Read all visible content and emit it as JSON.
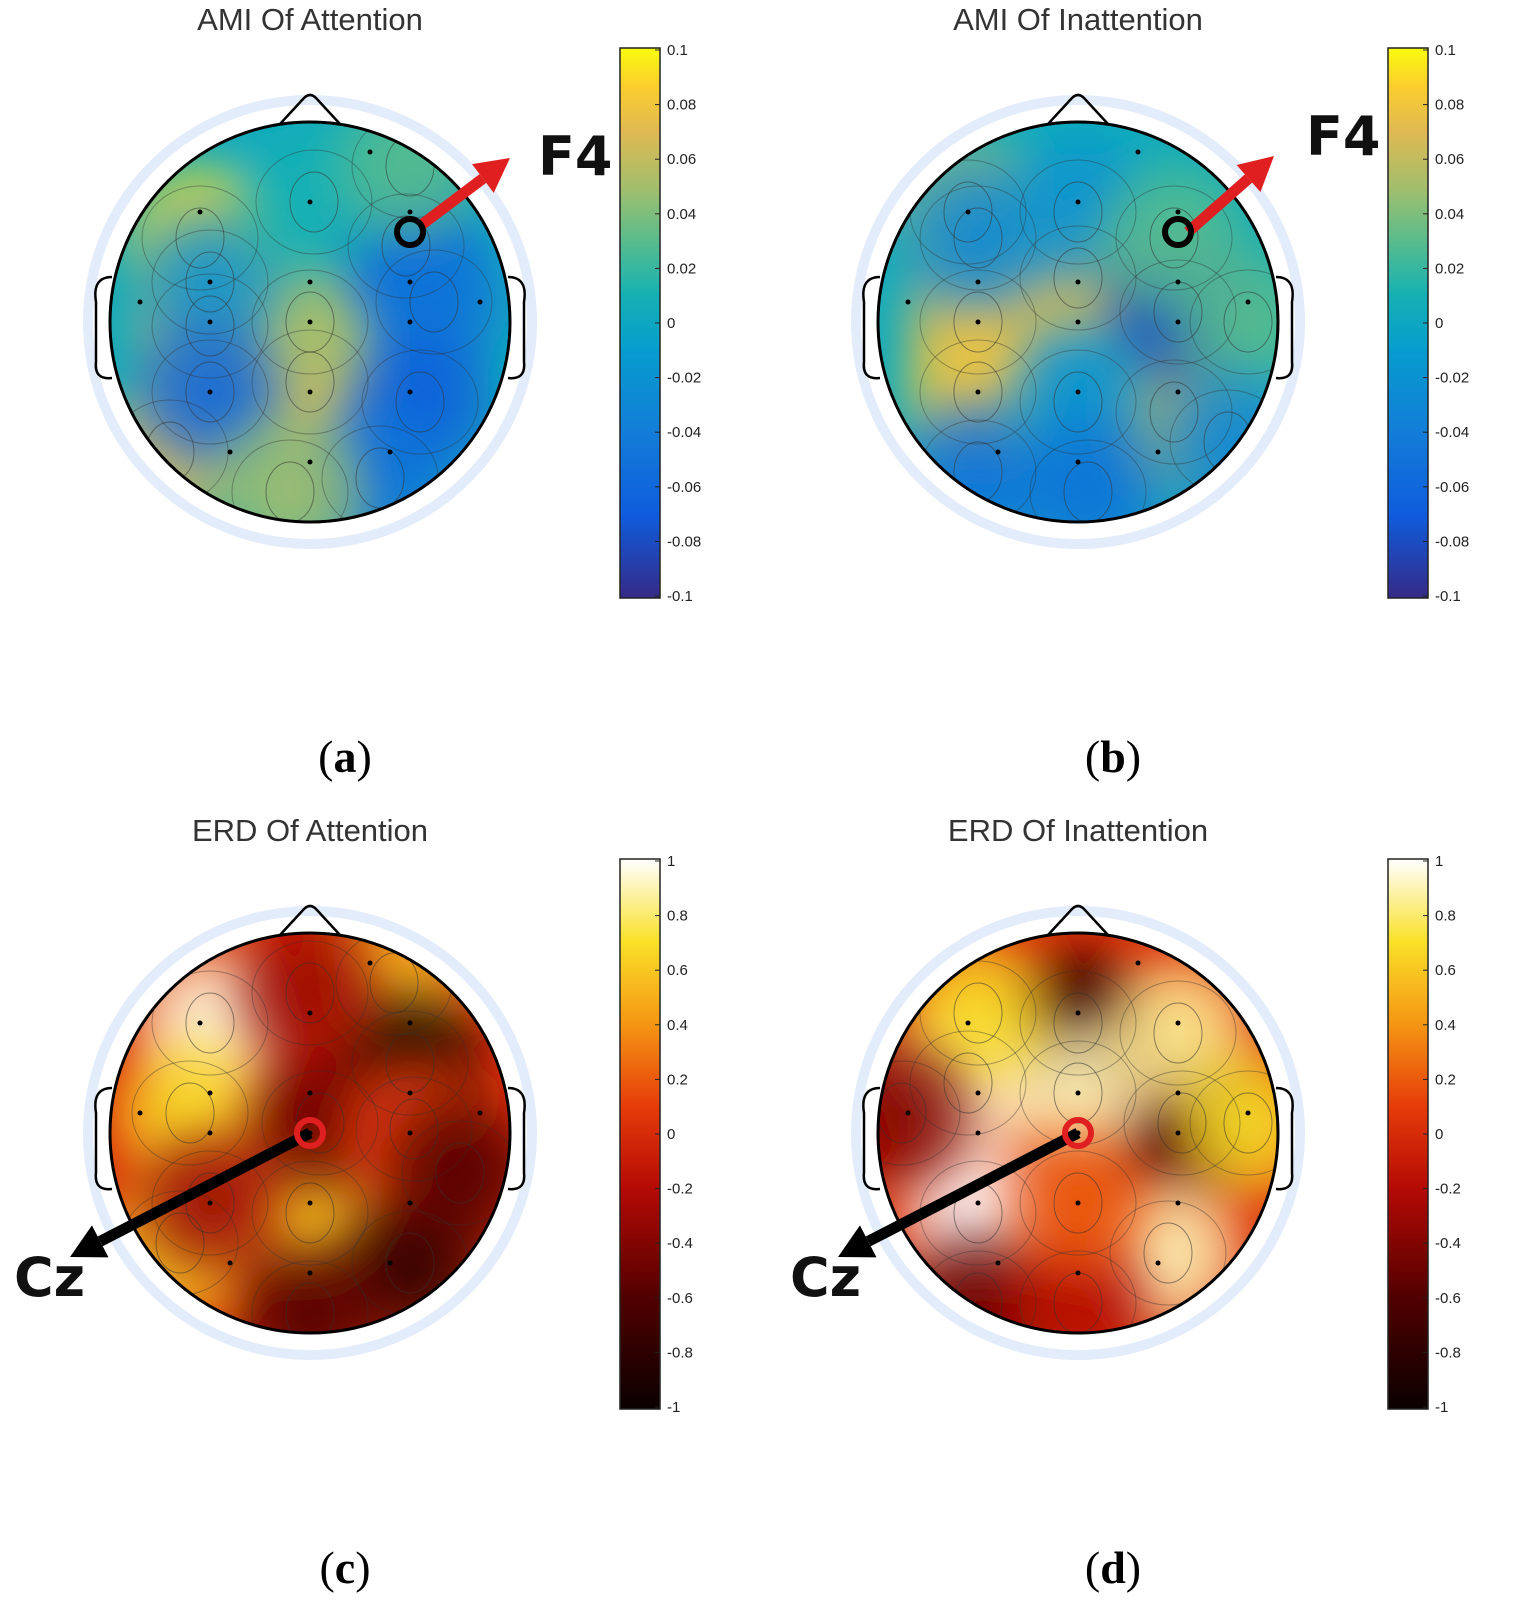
{
  "panels": [
    {
      "id": "a",
      "title": "AMI Of Attention",
      "label_letter": "a",
      "annotation": "F4",
      "annotation_color": "#e02020",
      "colormap": "parula",
      "colorbar_ticks": [
        "0.1",
        "0.08",
        "0.06",
        "0.04",
        "0.02",
        "0",
        "-0.02",
        "-0.04",
        "-0.06",
        "-0.08",
        "-0.1"
      ]
    },
    {
      "id": "b",
      "title": "AMI Of Inattention",
      "label_letter": "b",
      "annotation": "F4",
      "annotation_color": "#e02020",
      "colormap": "parula",
      "colorbar_ticks": [
        "0.1",
        "0.08",
        "0.06",
        "0.04",
        "0.02",
        "0",
        "-0.02",
        "-0.04",
        "-0.06",
        "-0.08",
        "-0.1"
      ]
    },
    {
      "id": "c",
      "title": "ERD Of Attention",
      "label_letter": "c",
      "annotation": "Cz",
      "annotation_color": "#000000",
      "colormap": "hot",
      "colorbar_ticks": [
        "1",
        "0.8",
        "0.6",
        "0.4",
        "0.2",
        "0",
        "-0.2",
        "-0.4",
        "-0.6",
        "-0.8",
        "-1"
      ]
    },
    {
      "id": "d",
      "title": "ERD Of Inattention",
      "label_letter": "d",
      "annotation": "Cz",
      "annotation_color": "#000000",
      "colormap": "hot",
      "colorbar_ticks": [
        "1",
        "0.8",
        "0.6",
        "0.4",
        "0.2",
        "0",
        "-0.2",
        "-0.4",
        "-0.6",
        "-0.8",
        "-1"
      ]
    }
  ],
  "chart_data": [
    {
      "type": "heatmap",
      "title": "AMI Of Attention",
      "colorbar_range": [
        -0.1,
        0.1
      ],
      "highlighted_channel": "F4",
      "blobs": [
        {
          "x": -0.55,
          "y": 0.42,
          "v": 0.09
        },
        {
          "x": -0.5,
          "y": -0.02,
          "v": 0.07
        },
        {
          "x": 0.0,
          "y": -0.3,
          "v": 0.07
        },
        {
          "x": -0.7,
          "y": -0.65,
          "v": 0.07
        },
        {
          "x": 0.0,
          "y": 0.0,
          "v": 0.05
        },
        {
          "x": -0.5,
          "y": 0.2,
          "v": -0.02
        },
        {
          "x": -0.5,
          "y": -0.35,
          "v": -0.06
        },
        {
          "x": 0.48,
          "y": 0.38,
          "v": -0.06
        },
        {
          "x": 0.62,
          "y": 0.1,
          "v": -0.05
        },
        {
          "x": 0.55,
          "y": -0.4,
          "v": -0.07
        },
        {
          "x": 0.35,
          "y": -0.78,
          "v": -0.05
        },
        {
          "x": 0.02,
          "y": 0.6,
          "v": 0.01
        },
        {
          "x": 0.5,
          "y": 0.78,
          "v": 0.03
        },
        {
          "x": -0.1,
          "y": -0.85,
          "v": 0.05
        }
      ]
    },
    {
      "type": "heatmap",
      "title": "AMI Of Inattention",
      "colorbar_range": [
        -0.1,
        0.1
      ],
      "highlighted_channel": "F4",
      "blobs": [
        {
          "x": -0.5,
          "y": 0.0,
          "v": 0.07
        },
        {
          "x": -0.5,
          "y": -0.35,
          "v": 0.08
        },
        {
          "x": 0.0,
          "y": 0.22,
          "v": 0.07
        },
        {
          "x": 0.48,
          "y": -0.45,
          "v": 0.07
        },
        {
          "x": -0.55,
          "y": 0.55,
          "v": 0.05
        },
        {
          "x": -0.5,
          "y": 0.42,
          "v": -0.03
        },
        {
          "x": 0.0,
          "y": 0.55,
          "v": -0.02
        },
        {
          "x": 0.5,
          "y": 0.05,
          "v": -0.08
        },
        {
          "x": 0.48,
          "y": 0.42,
          "v": 0.03
        },
        {
          "x": -0.5,
          "y": -0.75,
          "v": -0.05
        },
        {
          "x": 0.0,
          "y": -0.4,
          "v": -0.02
        },
        {
          "x": 0.05,
          "y": -0.85,
          "v": -0.05
        },
        {
          "x": 0.85,
          "y": 0.0,
          "v": 0.03
        },
        {
          "x": 0.75,
          "y": -0.6,
          "v": -0.03
        }
      ]
    },
    {
      "type": "heatmap",
      "title": "ERD Of Attention",
      "colorbar_range": [
        -1,
        1
      ],
      "highlighted_channel": "Cz",
      "blobs": [
        {
          "x": -0.5,
          "y": 0.55,
          "v": 0.95
        },
        {
          "x": -0.6,
          "y": 0.1,
          "v": 0.7
        },
        {
          "x": -0.65,
          "y": -0.55,
          "v": 0.7
        },
        {
          "x": 0.0,
          "y": -0.4,
          "v": 0.6
        },
        {
          "x": 0.42,
          "y": 0.75,
          "v": 0.55
        },
        {
          "x": 0.5,
          "y": 0.35,
          "v": -0.95
        },
        {
          "x": 0.05,
          "y": 0.05,
          "v": -0.5
        },
        {
          "x": 0.5,
          "y": -0.65,
          "v": -0.8
        },
        {
          "x": -0.5,
          "y": -0.35,
          "v": -0.3
        },
        {
          "x": 0.52,
          "y": 0.02,
          "v": 0.1
        },
        {
          "x": 0.75,
          "y": -0.2,
          "v": -0.6
        },
        {
          "x": 0.0,
          "y": 0.7,
          "v": -0.3
        },
        {
          "x": 0.0,
          "y": -0.9,
          "v": -0.6
        }
      ]
    },
    {
      "type": "heatmap",
      "title": "ERD Of Inattention",
      "colorbar_range": [
        -1,
        1
      ],
      "highlighted_channel": "Cz",
      "blobs": [
        {
          "x": 0.0,
          "y": 0.55,
          "v": -0.85
        },
        {
          "x": 0.52,
          "y": 0.05,
          "v": -0.75
        },
        {
          "x": -0.5,
          "y": -0.4,
          "v": 1.0
        },
        {
          "x": -0.55,
          "y": 0.25,
          "v": 0.95
        },
        {
          "x": 0.0,
          "y": 0.2,
          "v": 0.9
        },
        {
          "x": 0.5,
          "y": 0.5,
          "v": 0.85
        },
        {
          "x": 0.45,
          "y": -0.6,
          "v": 0.9
        },
        {
          "x": -0.5,
          "y": 0.6,
          "v": 0.7
        },
        {
          "x": -0.5,
          "y": -0.85,
          "v": -0.5
        },
        {
          "x": 0.0,
          "y": -0.85,
          "v": -0.2
        },
        {
          "x": -0.88,
          "y": 0.1,
          "v": -0.4
        },
        {
          "x": 0.85,
          "y": 0.05,
          "v": 0.7
        },
        {
          "x": 0.0,
          "y": -0.35,
          "v": 0.2
        }
      ]
    }
  ]
}
